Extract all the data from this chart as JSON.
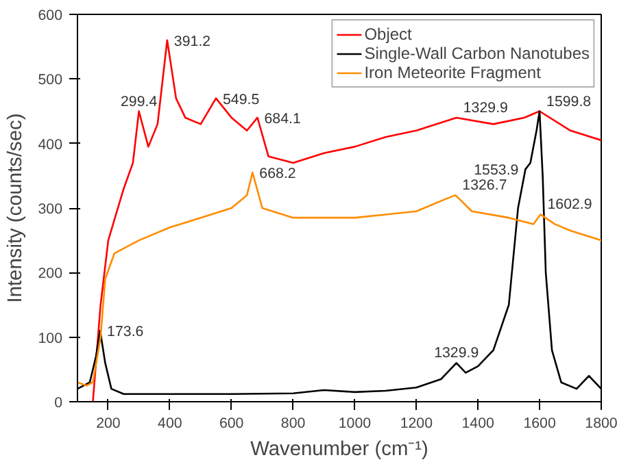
{
  "chart_data": {
    "type": "line",
    "xlabel": "Wavenumber (cm⁻¹)",
    "ylabel": "Intensity (counts/sec)",
    "xlim": [
      100,
      1800
    ],
    "ylim": [
      0,
      600
    ],
    "xticks": [
      200,
      400,
      600,
      800,
      1000,
      1200,
      1400,
      1600,
      1800
    ],
    "yticks": [
      0,
      100,
      200,
      300,
      400,
      500,
      600
    ],
    "grid": false,
    "legend": "top right",
    "marker": "none",
    "line_style": "solid",
    "series": [
      {
        "name": "Object",
        "color": "#ff0000",
        "x": [
          150,
          175,
          200,
          250,
          280,
          299.4,
          330,
          360,
          391.2,
          420,
          450,
          500,
          549.5,
          600,
          650,
          684.1,
          720,
          800,
          900,
          1000,
          1100,
          1200,
          1329.9,
          1450,
          1550,
          1599.8,
          1700,
          1800
        ],
        "values": [
          0,
          150,
          250,
          330,
          370,
          450,
          395,
          430,
          560,
          470,
          440,
          430,
          470,
          440,
          420,
          440,
          380,
          370,
          385,
          395,
          410,
          420,
          440,
          430,
          440,
          450,
          420,
          405
        ]
      },
      {
        "name": "Single-Wall Carbon Nanotubes",
        "color": "#000000",
        "x": [
          100,
          140,
          160,
          173.6,
          190,
          210,
          250,
          400,
          600,
          800,
          900,
          1000,
          1100,
          1200,
          1280,
          1310,
          1329.9,
          1360,
          1400,
          1450,
          1500,
          1530,
          1553.9,
          1570,
          1590,
          1599.8,
          1610,
          1620,
          1640,
          1670,
          1720,
          1760,
          1800
        ],
        "values": [
          20,
          30,
          70,
          110,
          60,
          20,
          12,
          12,
          12,
          13,
          18,
          15,
          17,
          22,
          35,
          50,
          60,
          45,
          55,
          80,
          150,
          300,
          360,
          370,
          420,
          450,
          350,
          200,
          80,
          30,
          20,
          40,
          20
        ]
      },
      {
        "name": "Iron Meteorite Fragment",
        "color": "#ff8c00",
        "x": [
          100,
          130,
          150,
          175,
          190,
          220,
          300,
          400,
          500,
          600,
          650,
          668.2,
          700,
          800,
          900,
          1000,
          1100,
          1200,
          1300,
          1326.7,
          1380,
          1500,
          1580,
          1602.9,
          1650,
          1700,
          1800
        ],
        "values": [
          30,
          25,
          30,
          100,
          190,
          230,
          250,
          270,
          285,
          300,
          320,
          355,
          300,
          285,
          285,
          285,
          290,
          295,
          315,
          320,
          295,
          285,
          275,
          290,
          275,
          265,
          250
        ]
      }
    ],
    "annotations": [
      {
        "text": "391.2",
        "x": 391.2,
        "y": 560
      },
      {
        "text": "299.4",
        "x": 299.4,
        "y": 450
      },
      {
        "text": "549.5",
        "x": 549.5,
        "y": 470
      },
      {
        "text": "684.1",
        "x": 684.1,
        "y": 440
      },
      {
        "text": "1329.9",
        "x": 1329.9,
        "y": 440
      },
      {
        "text": "1599.8",
        "x": 1599.8,
        "y": 450
      },
      {
        "text": "668.2",
        "x": 668.2,
        "y": 355
      },
      {
        "text": "1326.7",
        "x": 1326.7,
        "y": 320
      },
      {
        "text": "1553.9",
        "x": 1553.9,
        "y": 360
      },
      {
        "text": "1602.9",
        "x": 1602.9,
        "y": 290
      },
      {
        "text": "173.6",
        "x": 173.6,
        "y": 110
      },
      {
        "text": "1329.9",
        "x": 1329.9,
        "y": 60
      }
    ]
  }
}
